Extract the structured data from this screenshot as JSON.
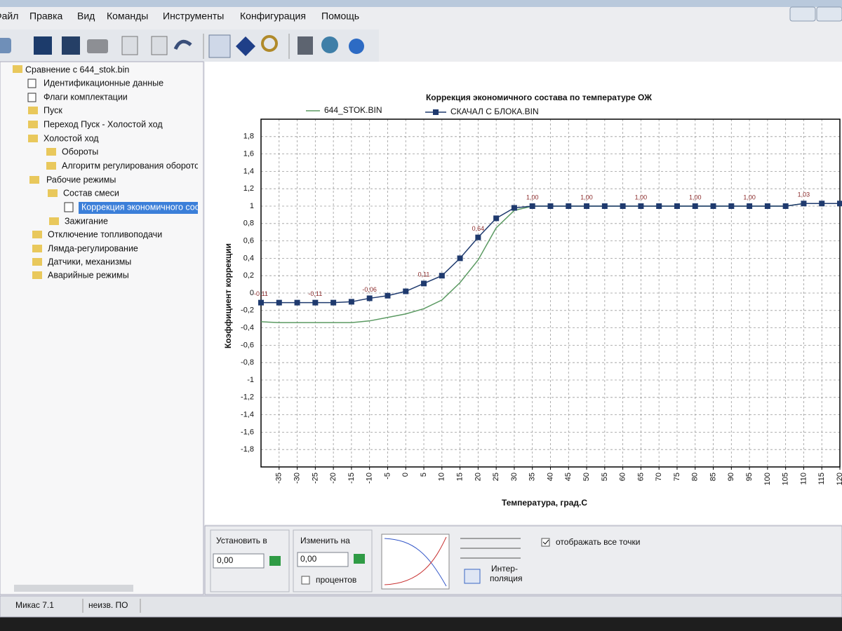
{
  "menu": [
    "Файл",
    "Правка",
    "Вид",
    "Команды",
    "Инструменты",
    "Конфигурация",
    "Помощь"
  ],
  "tree": {
    "items": [
      "Сравнение с 644_stok.bin",
      "Идентификационные данные",
      "Флаги комплектации",
      "Пуск",
      "Переход Пуск - Холостой ход",
      "Холостой ход",
      "Обороты",
      "Алгоритм регулирования оборотов",
      "Рабочие режимы",
      "Состав смеси",
      "Коррекция экономичного состава",
      "Зажигание",
      "Отключение топливоподачи",
      "Лямда-регулирование",
      "Датчики, механизмы",
      "Аварийные режимы"
    ]
  },
  "panel": {
    "set_to_label": "Установить в",
    "set_to_value": "0,00",
    "change_by_label": "Изменить на",
    "change_by_value": "0,00",
    "percent_label": "процентов",
    "interpolation_line1": "Интер-",
    "interpolation_line2": "поляция",
    "show_all_points_label": "отображать все точки"
  },
  "status": [
    "Микас 7.1",
    "неизв. ПО"
  ],
  "chart_data": {
    "type": "line",
    "title": "Коррекция экономичного состава по температуре ОЖ",
    "x_label": "Температура, град.С",
    "y_label": "Коэффициент коррекции",
    "x": [
      -40,
      -35,
      -30,
      -25,
      -20,
      -15,
      -10,
      -5,
      0,
      5,
      10,
      15,
      20,
      25,
      30,
      35,
      40,
      45,
      50,
      55,
      60,
      65,
      70,
      75,
      80,
      85,
      90,
      95,
      100,
      105,
      110,
      115,
      120
    ],
    "series": [
      {
        "name": "644_STOK.BIN",
        "color": "#5b9a62",
        "markers": false,
        "values": [
          -0.33,
          -0.34,
          -0.34,
          -0.34,
          -0.34,
          -0.34,
          -0.32,
          -0.28,
          -0.24,
          -0.18,
          -0.08,
          0.12,
          0.38,
          0.75,
          0.95,
          1,
          1,
          1,
          1,
          1,
          1,
          1,
          1,
          1,
          1,
          1,
          1,
          1,
          1,
          1,
          1.03,
          1.03,
          1.03
        ]
      },
      {
        "name": "СКАЧАЛ С БЛОКА.BIN",
        "color": "#1f3a6e",
        "markers": true,
        "values": [
          -0.11,
          -0.11,
          -0.11,
          -0.11,
          -0.11,
          -0.1,
          -0.06,
          -0.03,
          0.02,
          0.11,
          0.2,
          0.4,
          0.64,
          0.86,
          0.98,
          1,
          1,
          1,
          1,
          1,
          1,
          1,
          1,
          1,
          1,
          1,
          1,
          1,
          1,
          1,
          1.03,
          1.03,
          1.03
        ],
        "value_labels": [
          "-0,11",
          null,
          null,
          "-0,11",
          null,
          null,
          "-0,06",
          null,
          null,
          "0,11",
          null,
          null,
          "0,64",
          null,
          null,
          "1,00",
          null,
          null,
          "1,00",
          null,
          null,
          "1,00",
          null,
          null,
          "1,00",
          null,
          null,
          "1,00",
          null,
          null,
          "1,03",
          null,
          null
        ]
      }
    ],
    "xlim": [
      -40,
      120
    ],
    "xticks": [
      -35,
      -30,
      -25,
      -20,
      -15,
      -10,
      -5,
      0,
      5,
      10,
      15,
      20,
      25,
      30,
      35,
      40,
      45,
      50,
      55,
      60,
      65,
      70,
      75,
      80,
      85,
      90,
      95,
      100,
      105,
      110,
      115,
      120
    ],
    "ylim": [
      -2,
      2
    ],
    "yticks": [
      {
        "value": 1.8,
        "label": "1,8"
      },
      {
        "value": 1.6,
        "label": "1,6"
      },
      {
        "value": 1.4,
        "label": "1,4"
      },
      {
        "value": 1.2,
        "label": "1,2"
      },
      1,
      {
        "value": 0.8,
        "label": "0,8"
      },
      {
        "value": 0.6,
        "label": "0,6"
      },
      {
        "value": 0.4,
        "label": "0,4"
      },
      {
        "value": 0.2,
        "label": "0,2"
      },
      0,
      {
        "value": -0.2,
        "label": "-0,2"
      },
      {
        "value": -0.4,
        "label": "-0,4"
      },
      {
        "value": -0.6,
        "label": "-0,6"
      },
      {
        "value": -0.8,
        "label": "-0,8"
      },
      -1,
      {
        "value": -1.2,
        "label": "-1,2"
      },
      {
        "value": -1.4,
        "label": "-1,4"
      },
      {
        "value": -1.6,
        "label": "-1,6"
      },
      {
        "value": -1.8,
        "label": "-1,8"
      }
    ],
    "grid": true
  }
}
